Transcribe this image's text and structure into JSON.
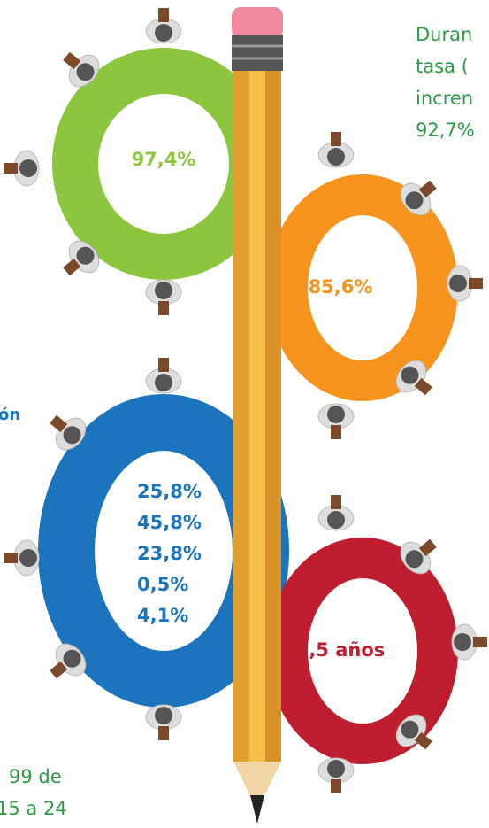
{
  "rings": [
    {
      "label": "97,4%"
    },
    {
      "label": "85,6%"
    },
    {
      "labels": [
        "25,8%",
        "45,8%",
        "23,8%",
        "0,5%",
        "4,1%"
      ]
    },
    {
      "label": "9,5 años"
    }
  ],
  "text_right": [
    "Duran",
    "tasa (",
    "incren",
    "92,7%"
  ],
  "text_left": "ón",
  "text_bottom": [
    "99  de",
    "15 a 24"
  ]
}
